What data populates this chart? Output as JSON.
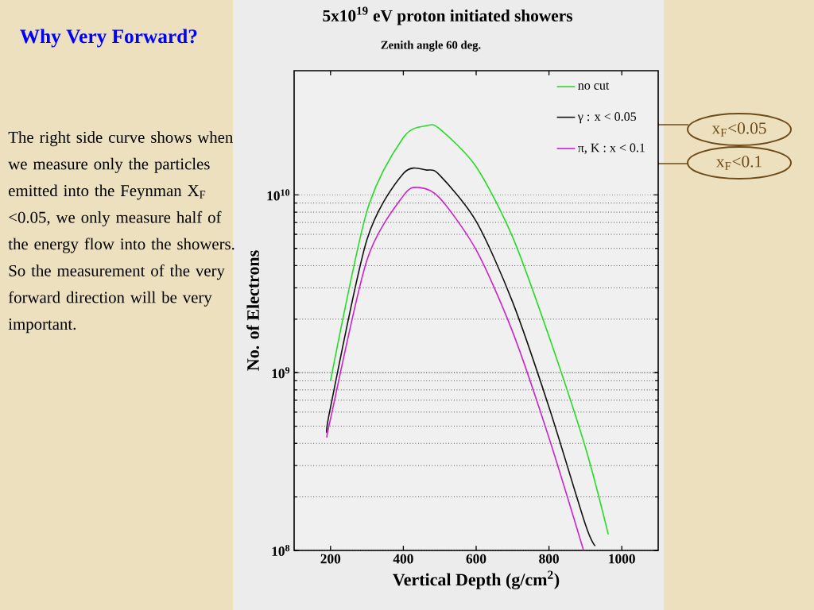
{
  "chart_data": {
    "type": "line",
    "title": "5x10$^{19}$ eV proton initiated showers",
    "subtitle": "Zenith angle 60 deg.",
    "xlabel": "Vertical Depth (g/cm$^{2}$)",
    "ylabel": "No. of Electrons",
    "annotations": [
      "Why Very Forward?",
      "The right side curve shows when we measure only the particles emitted into the Feynman X$_{F}$ <0.05, we only measure half of the energy flow into the showers.  So the measurement of the very forward direction will be very important.",
      "x$_{F}$<0.05",
      "x$_{F}$<0.1"
    ],
    "series": [
      {
        "name": "no cut",
        "color": "#22dd22",
        "x": [
          200,
          300,
          400,
          464,
          500,
          600,
          700,
          800,
          900,
          963
        ],
        "values": [
          900000000.0,
          8100000000.0,
          21000000000.0,
          24500000000.0,
          23500000000.0,
          14400000000.0,
          5800000000.0,
          1600000000.0,
          380000000.0,
          123000000.0
        ]
      },
      {
        "name": "γ : x < 0.05",
        "color": "#111111",
        "x": [
          190,
          200,
          300,
          400,
          464,
          500,
          600,
          700,
          800,
          900,
          927
        ],
        "values": [
          460000000.0,
          640000000.0,
          5600000000.0,
          13200000000.0,
          13800000000.0,
          12900000000.0,
          7100000000.0,
          2500000000.0,
          640000000.0,
          140000000.0,
          106000000.0
        ]
      },
      {
        "name": "π, K : x < 0.1",
        "color": "#cc22cc",
        "x": [
          191,
          200,
          300,
          400,
          444,
          500,
          600,
          700,
          800,
          895
        ],
        "values": [
          440000000.0,
          550000000.0,
          4300000000.0,
          9900000000.0,
          11000000000.0,
          9600000000.0,
          4900000000.0,
          1700000000.0,
          430000000.0,
          100000000.0
        ]
      }
    ],
    "xlim": [
      100,
      1100
    ],
    "xticks": [
      200,
      400,
      600,
      800,
      1000
    ],
    "ylim": [
      100000000.0,
      50000000000.0
    ],
    "yticks": [
      {
        "value": 100000000.0,
        "label": "10$^{8}$"
      },
      {
        "value": 1000000000.0,
        "label": "10$^{9}$"
      },
      {
        "value": 10000000000.0,
        "label": "10$^{10}$"
      }
    ],
    "log": "y",
    "grid": "y",
    "legend": "top right",
    "marker": "none",
    "line_style": "solid"
  }
}
